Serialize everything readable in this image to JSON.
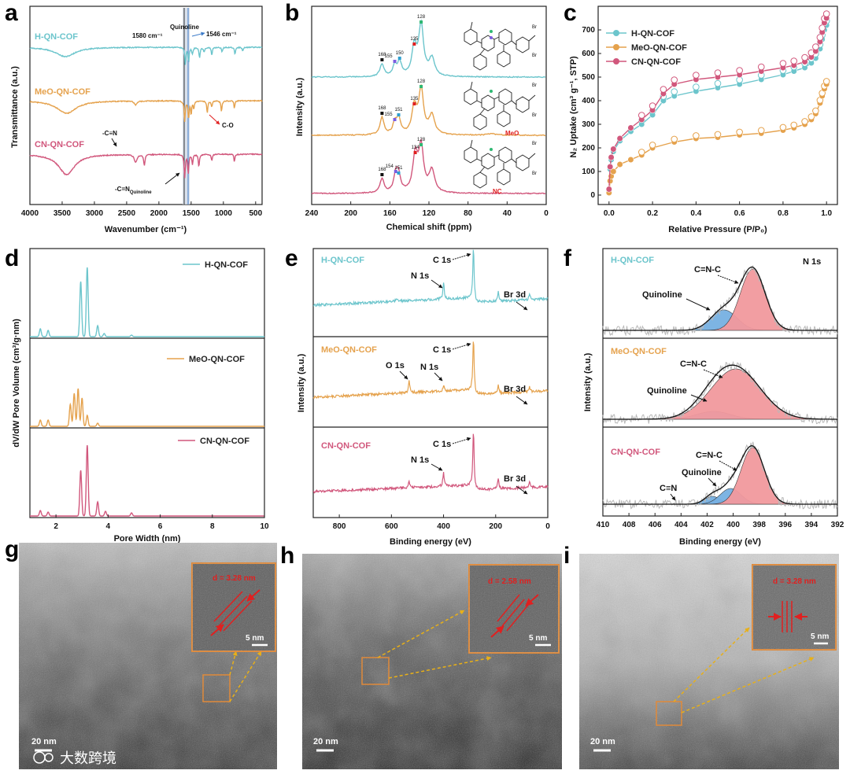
{
  "colors": {
    "h": "#6cc5cc",
    "meo": "#e5a24d",
    "cn": "#d1577c",
    "blue_peak": "#77b0e2",
    "red_peak": "#f2999e",
    "raw": "#b8b8b8",
    "fit": "#111111",
    "orange": "#e08a3a",
    "arrow_y": "#e8b018",
    "red": "#e02020"
  },
  "panels": {
    "a": "a",
    "b": "b",
    "c": "c",
    "d": "d",
    "e": "e",
    "f": "f",
    "g": "g",
    "h": "h",
    "i": "i"
  },
  "chart_data": [
    {
      "id": "a",
      "type": "line",
      "title": "",
      "xlabel": "Wavenumber (cm⁻¹)",
      "ylabel": "Transmittance (a.u.)",
      "xlim": [
        4000,
        400
      ],
      "xticks": [
        "4000",
        "3500",
        "3000",
        "2500",
        "2000",
        "1500",
        "1000",
        "500"
      ],
      "series": [
        {
          "name": "H-QN-COF"
        },
        {
          "name": "MeO-QN-COF"
        },
        {
          "name": "CN-QN-COF"
        }
      ],
      "annotations": {
        "quinoline": "Quinoline",
        "w1580": "1580 cm⁻¹",
        "w1546": "1546 cm⁻¹",
        "co": "C-O",
        "cn": "-C≡N",
        "cnq_main": "-C=N",
        "cnq_sub": "Quinoline"
      }
    },
    {
      "id": "b",
      "type": "line",
      "xlabel": "Chemical shift (ppm)",
      "ylabel": "Intensity (a.u.)",
      "xlim": [
        240,
        0
      ],
      "xticks": [
        "240",
        "200",
        "160",
        "120",
        "80",
        "40",
        "0"
      ],
      "series": [
        {
          "name": "H-QN-COF",
          "peaks": [
            "168",
            "155",
            "150",
            "135",
            "128"
          ]
        },
        {
          "name": "MeO-QN-COF",
          "peaks": [
            "168",
            "155",
            "151",
            "135",
            "128"
          ]
        },
        {
          "name": "CN-QN-COF",
          "peaks": [
            "168",
            "154",
            "151",
            "134",
            "128"
          ]
        }
      ],
      "struct_labels": {
        "br": "Br",
        "meo": "MeO",
        "nc": "NC"
      }
    },
    {
      "id": "c",
      "type": "scatter",
      "xlabel": "Relative Pressure (P/P₀)",
      "ylabel": "N₂ Uptake (cm³ g⁻¹, STP)",
      "xlim": [
        -0.05,
        1.05
      ],
      "ylim": [
        -40,
        800
      ],
      "xticks": [
        "0.0",
        "0.2",
        "0.4",
        "0.6",
        "0.8",
        "1.0"
      ],
      "yticks": [
        "0",
        "100",
        "200",
        "300",
        "400",
        "500",
        "600",
        "700"
      ],
      "series": [
        {
          "name": "H-QN-COF",
          "x": [
            0,
            0.005,
            0.01,
            0.02,
            0.05,
            0.1,
            0.15,
            0.2,
            0.25,
            0.3,
            0.4,
            0.5,
            0.6,
            0.7,
            0.8,
            0.85,
            0.9,
            0.93,
            0.95,
            0.97,
            0.98,
            0.99,
            1.0
          ],
          "y": [
            20,
            110,
            150,
            185,
            230,
            270,
            300,
            340,
            400,
            420,
            440,
            455,
            470,
            490,
            510,
            525,
            540,
            560,
            580,
            620,
            660,
            700,
            720
          ]
        },
        {
          "name": "MeO-QN-COF",
          "x": [
            0,
            0.005,
            0.01,
            0.02,
            0.05,
            0.1,
            0.15,
            0.2,
            0.3,
            0.4,
            0.5,
            0.6,
            0.7,
            0.8,
            0.85,
            0.9,
            0.93,
            0.95,
            0.97,
            0.98,
            0.99,
            1.0
          ],
          "y": [
            10,
            60,
            80,
            100,
            130,
            150,
            170,
            200,
            225,
            240,
            245,
            255,
            262,
            275,
            285,
            300,
            320,
            345,
            390,
            420,
            450,
            470
          ]
        },
        {
          "name": "CN-QN-COF",
          "x": [
            0,
            0.005,
            0.01,
            0.02,
            0.05,
            0.1,
            0.15,
            0.2,
            0.25,
            0.3,
            0.4,
            0.5,
            0.6,
            0.7,
            0.8,
            0.85,
            0.9,
            0.93,
            0.95,
            0.97,
            0.98,
            0.99,
            1.0
          ],
          "y": [
            25,
            120,
            160,
            195,
            240,
            285,
            320,
            360,
            430,
            470,
            490,
            500,
            510,
            525,
            540,
            550,
            565,
            585,
            610,
            650,
            690,
            730,
            750
          ]
        }
      ]
    },
    {
      "id": "d",
      "type": "line",
      "xlabel": "Pore Width (nm)",
      "ylabel": "dV/dW Pore Volume (cm³/g·nm)",
      "xlim": [
        1,
        10
      ],
      "xticks": [
        "2",
        "4",
        "6",
        "8",
        "10"
      ],
      "series": [
        {
          "name": "H-QN-COF"
        },
        {
          "name": "MeO-QN-COF"
        },
        {
          "name": "CN-QN-COF"
        }
      ]
    },
    {
      "id": "e",
      "type": "line",
      "xlabel": "Binding energy (eV)",
      "ylabel": "Intensity (a.u.)",
      "xlim": [
        900,
        0
      ],
      "xticks": [
        "800",
        "600",
        "400",
        "200",
        "0"
      ],
      "series": [
        {
          "name": "H-QN-COF",
          "labels": [
            "C 1s",
            "N 1s",
            "Br 3d"
          ]
        },
        {
          "name": "MeO-QN-COF",
          "labels": [
            "C 1s",
            "O 1s",
            "N 1s",
            "Br 3d"
          ]
        },
        {
          "name": "CN-QN-COF",
          "labels": [
            "C 1s",
            "N 1s",
            "Br 3d"
          ]
        }
      ]
    },
    {
      "id": "f",
      "type": "line",
      "xlabel": "Binding energy (eV)",
      "ylabel": "Intensity (a.u.)",
      "title": "N 1s",
      "xlim": [
        410,
        392
      ],
      "xticks": [
        "410",
        "408",
        "406",
        "404",
        "402",
        "400",
        "398",
        "396",
        "394",
        "392"
      ],
      "series": [
        {
          "name": "H-QN-COF",
          "labels": [
            "C=N-C",
            "Quinoline"
          ]
        },
        {
          "name": "MeO-QN-COF",
          "labels": [
            "C=N-C",
            "Quinoline"
          ]
        },
        {
          "name": "CN-QN-COF",
          "labels": [
            "C=N-C",
            "Quinoline",
            "C≡N"
          ]
        }
      ]
    }
  ],
  "tem": {
    "g": {
      "scale": "20 nm",
      "inset_scale": "5 nm",
      "d": "d = 3.28 nm"
    },
    "h": {
      "scale": "20 nm",
      "inset_scale": "5 nm",
      "d": "d = 2.58 nm"
    },
    "i": {
      "scale": "20 nm",
      "inset_scale": "5 nm",
      "d": "d = 3.28 nm"
    }
  },
  "watermark": "大数跨境"
}
